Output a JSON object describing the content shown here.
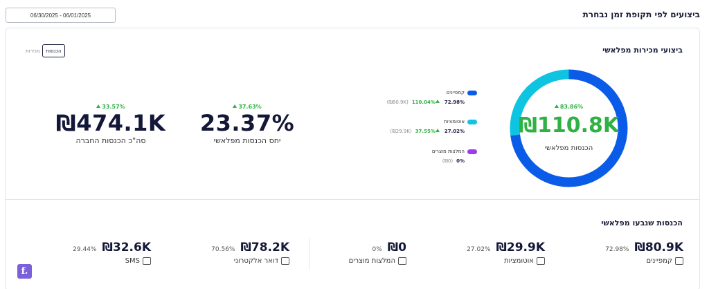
{
  "header": {
    "title": "ביצועים לפי תקופת זמן נבחרת",
    "date_range": "06/30/2025 - 06/01/2025"
  },
  "sales_section": {
    "title": "ביצועי מכירות מפלאשי",
    "toggle": {
      "active": "הכנסות",
      "inactive": "מכירות"
    },
    "total_company": {
      "change": "33.57%",
      "value": "₪474.1K",
      "label": "סה\"כ הכנסות החברה"
    },
    "flashy_ratio": {
      "change": "37.63%",
      "value": "23.37%",
      "label": "יחס הכנסות מפלאשי"
    },
    "legend": [
      {
        "name": "קמפיינים",
        "pct": "72.98%",
        "change": "110.04%",
        "amount": "(₪80.9K)",
        "color": "#0a5ce8"
      },
      {
        "name": "אוטומציות",
        "pct": "27.02%",
        "change": "37.55%",
        "amount": "(₪29.9K)",
        "color": "#0fc4e0"
      },
      {
        "name": "המלצות מוצרים",
        "pct": "0%",
        "change": "",
        "amount": "(₪0)",
        "color": "#9b3de8"
      }
    ],
    "donut": {
      "change": "83.86%",
      "value": "₪110.8K",
      "label": "הכנסות מפלאשי"
    }
  },
  "chart_data": {
    "type": "pie",
    "categories": [
      "קמפיינים",
      "אוטומציות",
      "המלצות מוצרים"
    ],
    "values": [
      72.98,
      27.02,
      0
    ],
    "colors": [
      "#0a5ce8",
      "#0fc4e0",
      "#9b3de8"
    ]
  },
  "revenue_section": {
    "title": "הכנסות שנבעו מפלאשי",
    "items": [
      {
        "value": "₪80.9K",
        "pct": "72.98%",
        "label": "קמפיינים",
        "icon": "envelope-icon"
      },
      {
        "value": "₪29.9K",
        "pct": "27.02%",
        "label": "אוטומציות",
        "icon": "automation-icon"
      },
      {
        "value": "₪0",
        "pct": "0%",
        "label": "המלצות מוצרים",
        "icon": "recommendation-icon"
      },
      {
        "value": "₪78.2K",
        "pct": "70.56%",
        "label": "דואר אלקטרוני",
        "icon": "mail-icon"
      },
      {
        "value": "₪32.6K",
        "pct": "29.44%",
        "label": "SMS",
        "icon": "chat-icon"
      }
    ]
  },
  "fab": {
    "label": "f."
  }
}
